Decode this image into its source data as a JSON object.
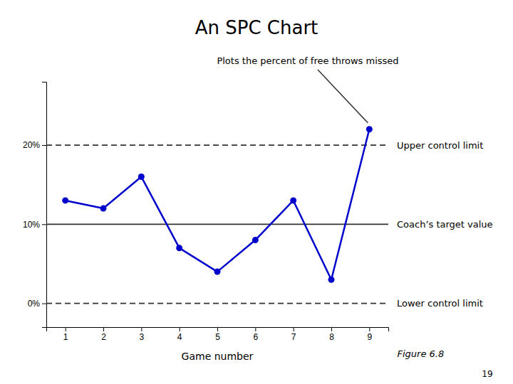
{
  "chart_data": {
    "type": "line",
    "title": "An SPC Chart",
    "subtitle": "Plots the percent of free throws missed",
    "xlabel": "Game number",
    "x": [
      1,
      2,
      3,
      4,
      5,
      6,
      7,
      8,
      9
    ],
    "values": [
      13,
      12,
      16,
      7,
      4,
      8,
      13,
      3,
      22
    ],
    "color": "#0000cc",
    "marker": "circle",
    "xlim": [
      0.5,
      9.5
    ],
    "xticks": [
      1,
      2,
      3,
      4,
      5,
      6,
      7,
      8,
      9
    ],
    "ylim": [
      -3,
      28
    ],
    "yticks": [
      {
        "value": 0,
        "label": "0%"
      },
      {
        "value": 10,
        "label": "10%"
      },
      {
        "value": 20,
        "label": "20%"
      }
    ],
    "reference_lines": [
      {
        "value": 20,
        "label": "Upper control limit",
        "line_style": "dashed"
      },
      {
        "value": 10,
        "label": "Coach’s target value",
        "line_style": "solid"
      },
      {
        "value": 0,
        "label": "Lower control limit",
        "line_style": "dashed"
      }
    ],
    "annotations": [
      "Figure 6.8",
      "19"
    ]
  }
}
